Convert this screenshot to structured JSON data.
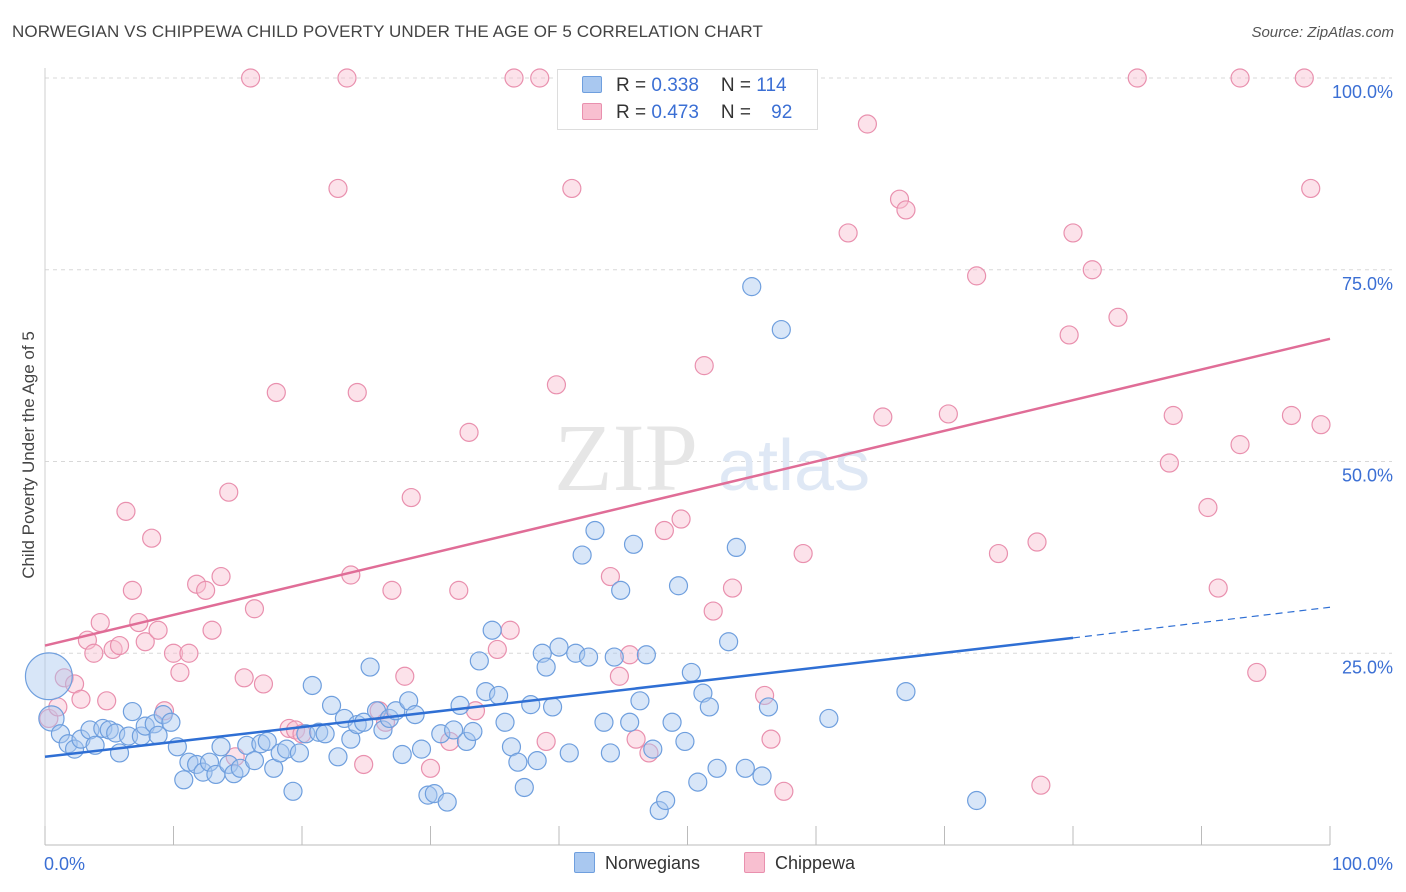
{
  "header": {
    "title": "NORWEGIAN VS CHIPPEWA CHILD POVERTY UNDER THE AGE OF 5 CORRELATION CHART",
    "source": "Source: ZipAtlas.com"
  },
  "watermark": {
    "zip": "ZIP",
    "atlas": "atlas"
  },
  "legend_top": {
    "rows": [
      {
        "r_label": "R = ",
        "r_value": "0.338",
        "n_label": "N = ",
        "n_value": "114"
      },
      {
        "r_label": "R = ",
        "r_value": "0.473",
        "n_label": "N = ",
        "n_value": "92"
      }
    ]
  },
  "legend_bottom": {
    "items": [
      "Norwegians",
      "Chippewa"
    ]
  },
  "colors": {
    "blue_fill": "#a9c8f0",
    "blue_stroke": "#6f9fde",
    "blue_line": "#2f6fd4",
    "pink_fill": "#f8bfd0",
    "pink_stroke": "#e990ae",
    "pink_line": "#e06d97",
    "grid": "#d8d8d8",
    "tick_label": "#3b6fd4",
    "axis_label": "#444444"
  },
  "chart_data": {
    "type": "scatter",
    "title": "NORWEGIAN VS CHIPPEWA CHILD POVERTY UNDER THE AGE OF 5 CORRELATION CHART",
    "xlabel": "",
    "ylabel": "Child Poverty Under the Age of 5",
    "xlim": [
      0,
      100
    ],
    "ylim": [
      0,
      100
    ],
    "x_tick_labels": [
      "0.0%",
      "100.0%"
    ],
    "y_ticks": [
      25,
      50,
      75,
      100
    ],
    "y_tick_labels": [
      "25.0%",
      "50.0%",
      "75.0%",
      "100.0%"
    ],
    "grid": true,
    "legend_position": "top-center",
    "series": [
      {
        "name": "Norwegians",
        "r": 0.338,
        "n": 114,
        "trend": {
          "x0": 0,
          "y0": 11.5,
          "x1": 80,
          "y1": 27.0,
          "dash_to_x": 100,
          "dash_to_y": 31.0
        },
        "points": [
          [
            0.3,
            22.0,
            2.6
          ],
          [
            0.5,
            16.5,
            1.4
          ],
          [
            1.2,
            14.5,
            1.0
          ],
          [
            1.8,
            13.2,
            1.0
          ],
          [
            2.3,
            12.5,
            1.0
          ],
          [
            2.8,
            13.8,
            1.0
          ],
          [
            3.5,
            15.0,
            1.0
          ],
          [
            3.9,
            13.0,
            1.0
          ],
          [
            4.5,
            15.2,
            1.0
          ],
          [
            5.0,
            15.0,
            1.0
          ],
          [
            5.5,
            14.6,
            1.0
          ],
          [
            5.8,
            12.0,
            1.0
          ],
          [
            6.5,
            14.2,
            1.0
          ],
          [
            6.8,
            17.4,
            1.0
          ],
          [
            7.5,
            14.2,
            1.0
          ],
          [
            7.8,
            15.5,
            1.0
          ],
          [
            8.5,
            15.8,
            1.0
          ],
          [
            8.8,
            14.3,
            1.0
          ],
          [
            9.2,
            17.0,
            1.0
          ],
          [
            9.8,
            16.0,
            1.0
          ],
          [
            10.3,
            12.8,
            1.0
          ],
          [
            10.8,
            8.5,
            1.0
          ],
          [
            11.2,
            10.8,
            1.0
          ],
          [
            11.8,
            10.5,
            1.0
          ],
          [
            12.3,
            9.5,
            1.0
          ],
          [
            12.8,
            10.8,
            1.0
          ],
          [
            13.3,
            9.2,
            1.0
          ],
          [
            13.7,
            12.8,
            1.0
          ],
          [
            14.3,
            10.5,
            1.0
          ],
          [
            14.7,
            9.3,
            1.0
          ],
          [
            15.2,
            10.0,
            1.0
          ],
          [
            15.7,
            13.0,
            1.0
          ],
          [
            16.3,
            11.0,
            1.0
          ],
          [
            16.8,
            13.2,
            1.0
          ],
          [
            17.3,
            13.5,
            1.0
          ],
          [
            17.8,
            10.0,
            1.0
          ],
          [
            18.3,
            12.0,
            1.0
          ],
          [
            18.8,
            12.5,
            1.0
          ],
          [
            19.3,
            7.0,
            1.0
          ],
          [
            19.8,
            12.0,
            1.0
          ],
          [
            20.3,
            14.5,
            1.0
          ],
          [
            20.8,
            20.8,
            1.0
          ],
          [
            21.3,
            14.7,
            1.0
          ],
          [
            21.8,
            14.5,
            1.0
          ],
          [
            22.3,
            18.2,
            1.0
          ],
          [
            22.8,
            11.5,
            1.0
          ],
          [
            23.3,
            16.5,
            1.0
          ],
          [
            23.8,
            13.8,
            1.0
          ],
          [
            24.3,
            15.7,
            1.0
          ],
          [
            24.8,
            16.0,
            1.0
          ],
          [
            25.3,
            23.2,
            1.0
          ],
          [
            25.8,
            17.5,
            1.0
          ],
          [
            26.3,
            15.0,
            1.0
          ],
          [
            26.8,
            16.5,
            1.0
          ],
          [
            27.3,
            17.5,
            1.0
          ],
          [
            27.8,
            11.8,
            1.0
          ],
          [
            28.3,
            18.8,
            1.0
          ],
          [
            28.8,
            17.0,
            1.0
          ],
          [
            29.3,
            12.5,
            1.0
          ],
          [
            29.8,
            6.5,
            1.0
          ],
          [
            30.3,
            6.7,
            1.0
          ],
          [
            30.8,
            14.5,
            1.0
          ],
          [
            31.3,
            5.6,
            1.0
          ],
          [
            31.8,
            15.0,
            1.0
          ],
          [
            32.3,
            18.2,
            1.0
          ],
          [
            32.8,
            13.5,
            1.0
          ],
          [
            33.3,
            14.8,
            1.0
          ],
          [
            33.8,
            24.0,
            1.0
          ],
          [
            34.3,
            20.0,
            1.0
          ],
          [
            34.8,
            28.0,
            1.0
          ],
          [
            35.3,
            19.5,
            1.0
          ],
          [
            35.8,
            16.0,
            1.0
          ],
          [
            36.3,
            12.8,
            1.0
          ],
          [
            36.8,
            10.8,
            1.0
          ],
          [
            37.3,
            7.5,
            1.0
          ],
          [
            37.8,
            18.3,
            1.0
          ],
          [
            38.3,
            11.0,
            1.0
          ],
          [
            38.7,
            25.0,
            1.0
          ],
          [
            39.0,
            23.2,
            1.0
          ],
          [
            39.5,
            18.0,
            1.0
          ],
          [
            40.0,
            25.8,
            1.0
          ],
          [
            40.8,
            12.0,
            1.0
          ],
          [
            41.3,
            25.0,
            1.0
          ],
          [
            41.8,
            37.8,
            1.0
          ],
          [
            42.3,
            24.5,
            1.0
          ],
          [
            42.8,
            41.0,
            1.0
          ],
          [
            43.5,
            16.0,
            1.0
          ],
          [
            44.0,
            12.0,
            1.0
          ],
          [
            44.3,
            24.5,
            1.0
          ],
          [
            44.8,
            33.2,
            1.0
          ],
          [
            45.5,
            16.0,
            1.0
          ],
          [
            45.8,
            39.2,
            1.0
          ],
          [
            46.3,
            18.8,
            1.0
          ],
          [
            46.8,
            24.8,
            1.0
          ],
          [
            47.3,
            12.5,
            1.0
          ],
          [
            47.8,
            4.5,
            1.0
          ],
          [
            48.3,
            5.8,
            1.0
          ],
          [
            48.8,
            16.0,
            1.0
          ],
          [
            49.3,
            33.8,
            1.0
          ],
          [
            49.8,
            13.5,
            1.0
          ],
          [
            50.3,
            22.5,
            1.0
          ],
          [
            50.8,
            8.2,
            1.0
          ],
          [
            51.2,
            19.8,
            1.0
          ],
          [
            51.7,
            18.0,
            1.0
          ],
          [
            52.3,
            10.0,
            1.0
          ],
          [
            53.2,
            26.5,
            1.0
          ],
          [
            53.8,
            38.8,
            1.0
          ],
          [
            54.5,
            10.0,
            1.0
          ],
          [
            55.0,
            72.8,
            1.0
          ],
          [
            55.8,
            9.0,
            1.0
          ],
          [
            56.3,
            18.0,
            1.0
          ],
          [
            57.3,
            67.2,
            1.0
          ],
          [
            61.0,
            16.5,
            1.0
          ],
          [
            67.0,
            20.0,
            1.0
          ],
          [
            72.5,
            5.8,
            1.0
          ]
        ]
      },
      {
        "name": "Chippewa",
        "r": 0.473,
        "n": 92,
        "trend": {
          "x0": 0,
          "y0": 26.0,
          "x1": 100,
          "y1": 66.0
        },
        "points": [
          [
            0.3,
            16.5,
            1.0
          ],
          [
            1.0,
            18.0,
            1.0
          ],
          [
            1.5,
            21.8,
            1.0
          ],
          [
            2.3,
            21.0,
            1.0
          ],
          [
            2.8,
            19.0,
            1.0
          ],
          [
            3.3,
            26.7,
            1.0
          ],
          [
            3.8,
            25.0,
            1.0
          ],
          [
            4.3,
            29.0,
            1.0
          ],
          [
            4.8,
            18.8,
            1.0
          ],
          [
            5.3,
            25.5,
            1.0
          ],
          [
            5.8,
            26.0,
            1.0
          ],
          [
            6.3,
            43.5,
            1.0
          ],
          [
            6.8,
            33.2,
            1.0
          ],
          [
            7.3,
            29.0,
            1.0
          ],
          [
            7.8,
            26.5,
            1.0
          ],
          [
            8.3,
            40.0,
            1.0
          ],
          [
            8.8,
            28.0,
            1.0
          ],
          [
            9.3,
            17.5,
            1.0
          ],
          [
            10.0,
            25.0,
            1.0
          ],
          [
            10.5,
            22.5,
            1.0
          ],
          [
            11.2,
            25.0,
            1.0
          ],
          [
            11.8,
            34.0,
            1.0
          ],
          [
            12.5,
            33.2,
            1.0
          ],
          [
            13.0,
            28.0,
            1.0
          ],
          [
            13.7,
            35.0,
            1.0
          ],
          [
            14.3,
            46.0,
            1.0
          ],
          [
            14.8,
            11.5,
            1.0
          ],
          [
            15.5,
            21.8,
            1.0
          ],
          [
            16.3,
            30.8,
            1.0
          ],
          [
            17.0,
            21.0,
            1.0
          ],
          [
            18.0,
            59.0,
            1.0
          ],
          [
            19.0,
            15.2,
            1.0
          ],
          [
            19.5,
            15.0,
            1.0
          ],
          [
            20.0,
            14.5,
            1.0
          ],
          [
            22.8,
            85.6,
            1.0
          ],
          [
            23.8,
            35.2,
            1.0
          ],
          [
            24.3,
            59.0,
            1.0
          ],
          [
            24.8,
            10.5,
            1.0
          ],
          [
            26.0,
            17.5,
            1.0
          ],
          [
            26.5,
            16.0,
            1.0
          ],
          [
            27.0,
            33.2,
            1.0
          ],
          [
            28.0,
            22.0,
            1.0
          ],
          [
            28.5,
            45.3,
            1.0
          ],
          [
            30.0,
            10.0,
            1.0
          ],
          [
            31.5,
            13.5,
            1.0
          ],
          [
            32.2,
            33.2,
            1.0
          ],
          [
            33.0,
            53.8,
            1.0
          ],
          [
            33.5,
            17.5,
            1.0
          ],
          [
            35.2,
            25.5,
            1.0
          ],
          [
            36.2,
            28.0,
            1.0
          ],
          [
            38.5,
            100.0,
            1.0
          ],
          [
            39.0,
            13.5,
            1.0
          ],
          [
            39.8,
            60.0,
            1.0
          ],
          [
            41.0,
            85.6,
            1.0
          ],
          [
            44.0,
            35.0,
            1.0
          ],
          [
            44.7,
            22.0,
            1.0
          ],
          [
            45.5,
            24.8,
            1.0
          ],
          [
            46.0,
            13.8,
            1.0
          ],
          [
            47.0,
            12.0,
            1.0
          ],
          [
            48.2,
            41.0,
            1.0
          ],
          [
            49.5,
            42.5,
            1.0
          ],
          [
            51.3,
            62.5,
            1.0
          ],
          [
            52.0,
            30.5,
            1.0
          ],
          [
            53.5,
            33.5,
            1.0
          ],
          [
            56.0,
            19.5,
            1.0
          ],
          [
            56.5,
            13.8,
            1.0
          ],
          [
            57.5,
            7.0,
            1.0
          ],
          [
            59.0,
            38.0,
            1.0
          ],
          [
            62.5,
            79.8,
            1.0
          ],
          [
            64.0,
            94.0,
            1.0
          ],
          [
            65.2,
            55.8,
            1.0
          ],
          [
            66.5,
            84.2,
            1.0
          ],
          [
            67.0,
            82.8,
            1.0
          ],
          [
            70.3,
            56.2,
            1.0
          ],
          [
            72.5,
            74.2,
            1.0
          ],
          [
            74.2,
            38.0,
            1.0
          ],
          [
            77.2,
            39.5,
            1.0
          ],
          [
            77.5,
            7.8,
            1.0
          ],
          [
            79.7,
            66.5,
            1.0
          ],
          [
            80.0,
            79.8,
            1.0
          ],
          [
            81.5,
            75.0,
            1.0
          ],
          [
            83.5,
            68.8,
            1.0
          ],
          [
            87.5,
            49.8,
            1.0
          ],
          [
            87.8,
            56.0,
            1.0
          ],
          [
            90.5,
            44.0,
            1.0
          ],
          [
            91.3,
            33.5,
            1.0
          ],
          [
            93.0,
            52.2,
            1.0
          ],
          [
            94.3,
            22.5,
            1.0
          ],
          [
            97.0,
            56.0,
            1.0
          ],
          [
            98.5,
            85.6,
            1.0
          ],
          [
            99.3,
            54.8,
            1.0
          ],
          [
            16.0,
            100.0,
            1.0
          ],
          [
            23.5,
            100.0,
            1.0
          ],
          [
            36.5,
            100.0,
            1.0
          ],
          [
            85.0,
            100.0,
            1.0
          ],
          [
            93.0,
            100.0,
            1.0
          ],
          [
            98.0,
            100.0,
            1.0
          ]
        ]
      }
    ]
  }
}
